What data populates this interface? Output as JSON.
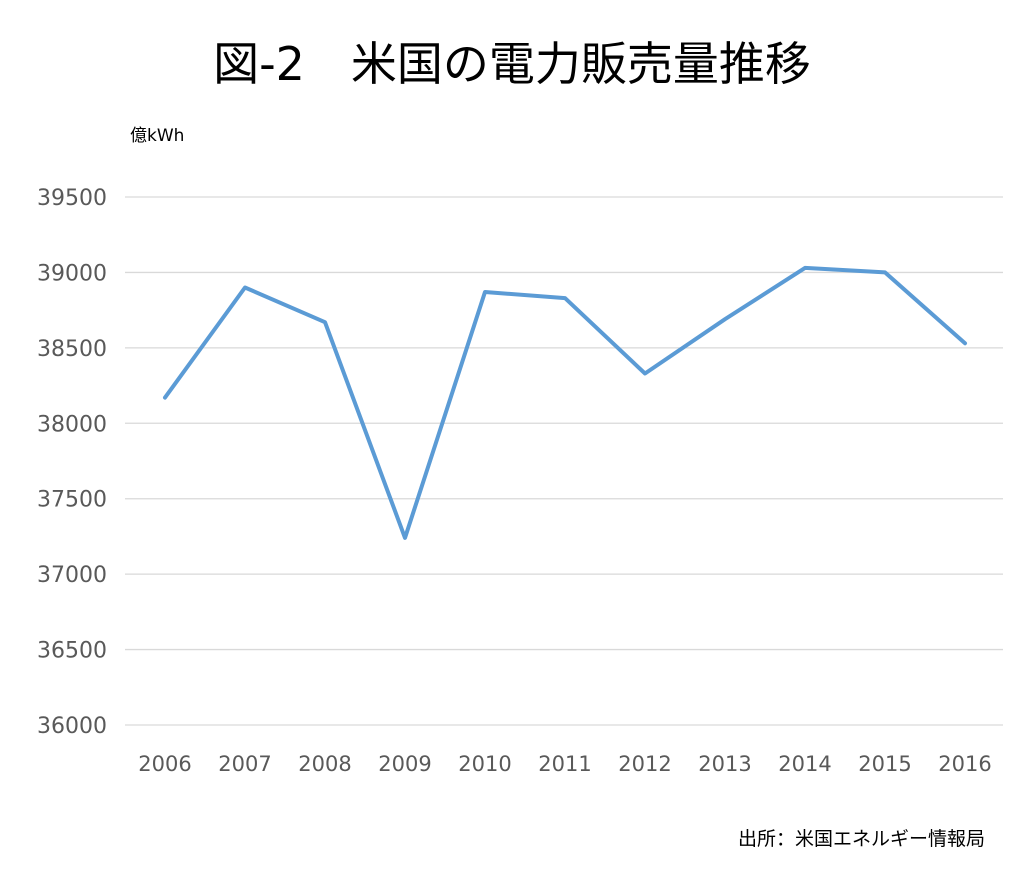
{
  "chart_data": {
    "type": "line",
    "title": "図-2　米国の電力販売量推移",
    "ylabel": "億kWh",
    "xlabel": "",
    "categories": [
      "2006",
      "2007",
      "2008",
      "2009",
      "2010",
      "2011",
      "2012",
      "2013",
      "2014",
      "2015",
      "2016"
    ],
    "series": [
      {
        "color": "#5b9bd5",
        "values": [
          38170,
          38900,
          38670,
          37240,
          38870,
          38830,
          38330,
          38690,
          39030,
          39000,
          38530
        ]
      }
    ],
    "ylim": [
      36000,
      39500
    ],
    "yticks": [
      "36000",
      "36500",
      "37000",
      "37500",
      "38000",
      "38500",
      "39000",
      "39500"
    ],
    "grid": true,
    "legend": "none",
    "source": "出所：米国エネルギー情報局"
  }
}
